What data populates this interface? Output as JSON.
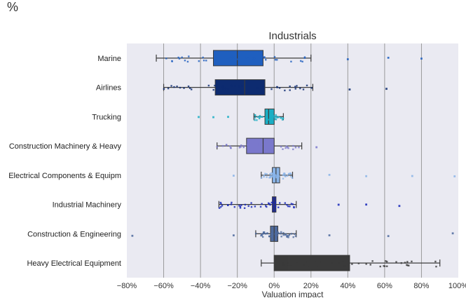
{
  "corner_label": "%",
  "chart_data": {
    "type": "box",
    "title": "Industrials",
    "xlabel": "Valuation impact",
    "ylabel": "",
    "xlim": [
      -80,
      100
    ],
    "xticks": [
      -80,
      -60,
      -40,
      -20,
      0,
      20,
      40,
      60,
      80,
      100
    ],
    "xtick_labels": [
      "−80%",
      "−60%",
      "−40%",
      "−20%",
      "0%",
      "20%",
      "40%",
      "60%",
      "80%",
      "100%"
    ],
    "grid": true,
    "categories": [
      {
        "label": "Marine",
        "color": "#1f5fbf",
        "whisker_low": -64,
        "q1": -33,
        "median": -20,
        "q3": -6,
        "whisker_high": 20,
        "outliers_high": [
          40,
          62,
          80
        ]
      },
      {
        "label": "Airlines",
        "color": "#0d2b70",
        "whisker_low": -60,
        "q1": -32,
        "median": -16,
        "q3": -5,
        "whisker_high": 21,
        "outliers_high": [
          41,
          61
        ]
      },
      {
        "label": "Trucking",
        "color": "#1aaec4",
        "whisker_low": -11,
        "q1": -5,
        "median": -3,
        "q3": 0,
        "whisker_high": 5,
        "outliers_low": [
          -41,
          -33,
          -25
        ]
      },
      {
        "label": "Construction Machinery & Heavy",
        "color": "#7a78cc",
        "whisker_low": -31,
        "q1": -15,
        "median": -6,
        "q3": 0,
        "whisker_high": 15,
        "outliers_high": [
          23
        ]
      },
      {
        "label": "Electrical Components & Equipm",
        "color": "#89b4e8",
        "whisker_low": -7,
        "q1": -1,
        "median": 1,
        "q3": 3,
        "whisker_high": 10,
        "outliers_low": [
          -22
        ],
        "outliers_high": [
          30,
          50,
          75,
          98
        ]
      },
      {
        "label": "Industrial Machinery",
        "color": "#1424b8",
        "whisker_low": -30,
        "q1": -1,
        "median": 0,
        "q3": 1,
        "whisker_high": 12,
        "outliers_high": [
          35,
          50,
          68
        ]
      },
      {
        "label": "Construction & Engineering",
        "color": "#4e6a9e",
        "whisker_low": -10,
        "q1": -2,
        "median": 0,
        "q3": 2,
        "whisker_high": 12,
        "outliers_low": [
          -77,
          -22
        ],
        "outliers_high": [
          30,
          62,
          97
        ]
      },
      {
        "label": "Heavy Electrical Equipment",
        "color": "#3a3a3a",
        "whisker_low": -7,
        "q1": 0,
        "median": 8,
        "q3": 41,
        "whisker_high": 90
      }
    ]
  }
}
